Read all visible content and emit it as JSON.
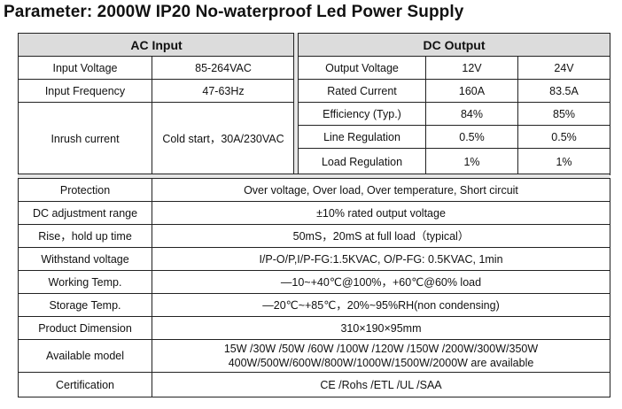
{
  "title": "Parameter: 2000W IP20 No-waterproof Led Power Supply",
  "ac_input": {
    "header": "AC Input",
    "rows": [
      {
        "label": "Input Voltage",
        "value": "85-264VAC"
      },
      {
        "label": "Input Frequency",
        "value": "47-63Hz"
      },
      {
        "label": "Inrush current",
        "value": "Cold start，30A/230VAC"
      }
    ]
  },
  "dc_output": {
    "header": "DC Output",
    "rows": [
      {
        "label": "Output Voltage",
        "v12": "12V",
        "v24": "24V"
      },
      {
        "label": "Rated Current",
        "v12": "160A",
        "v24": "83.5A"
      },
      {
        "label": "Efficiency (Typ.)",
        "v12": "84%",
        "v24": "85%"
      },
      {
        "label": "Line Regulation",
        "v12": "0.5%",
        "v24": "0.5%"
      },
      {
        "label": "Load Regulation",
        "v12": "1%",
        "v24": "1%"
      }
    ]
  },
  "specs": [
    {
      "label": "Protection",
      "value": "Over voltage, Over load, Over temperature, Short circuit"
    },
    {
      "label": "DC adjustment range",
      "value": "±10% rated output voltage"
    },
    {
      "label": "Rise，hold up time",
      "value": "50mS，20mS at full load（typical）"
    },
    {
      "label": "Withstand voltage",
      "value": "I/P-O/P,I/P-FG:1.5KVAC, O/P-FG: 0.5KVAC, 1min"
    },
    {
      "label": "Working Temp.",
      "value": "—10~+40℃@100%，+60℃@60% load"
    },
    {
      "label": "Storage Temp.",
      "value": "—20℃~+85℃，20%~95%RH(non condensing)"
    },
    {
      "label": "Product Dimension",
      "value": "310×190×95mm"
    },
    {
      "label": "Available model",
      "value_line1": "15W /30W /50W /60W /100W /120W /150W /200W/300W/350W",
      "value_line2": "400W/500W/600W/800W/1000W/1500W/2000W  are available"
    },
    {
      "label": "Certification",
      "value": "CE /Rohs /ETL /UL /SAA"
    }
  ]
}
